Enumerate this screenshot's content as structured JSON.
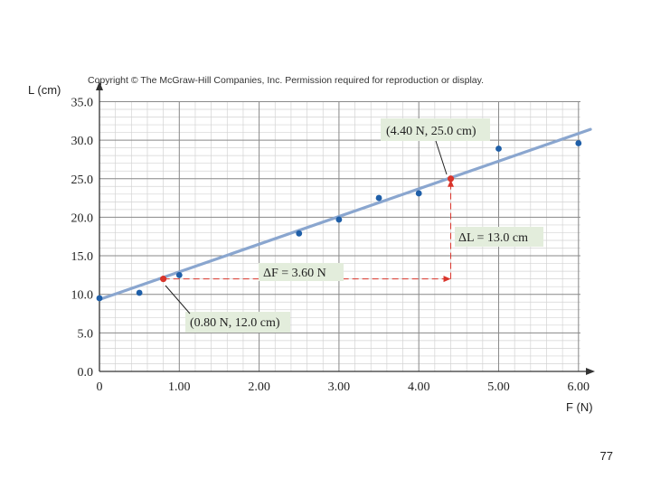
{
  "copyright": "Copyright © The McGraw-Hill Companies, Inc. Permission required for reproduction or display.",
  "slide_number": "77",
  "chart_data": {
    "type": "scatter",
    "title": "",
    "xlabel": "F (N)",
    "ylabel": "L (cm)",
    "xlim": [
      0,
      6.3
    ],
    "ylim": [
      0,
      35
    ],
    "x_ticks": [
      "0",
      "1.00",
      "2.00",
      "3.00",
      "4.00",
      "5.00",
      "6.00"
    ],
    "y_ticks": [
      "0.0",
      "5.0",
      "10.0",
      "15.0",
      "20.0",
      "25.0",
      "30.0",
      "35.0"
    ],
    "grid": true,
    "series": [
      {
        "color": "#1f5fa8",
        "x": [
          0,
          0.5,
          1.0,
          2.5,
          3.0,
          3.5,
          4.0,
          5.0,
          6.0
        ],
        "y": [
          9.5,
          10.2,
          12.5,
          17.9,
          19.7,
          22.5,
          23.1,
          28.9,
          29.6
        ]
      }
    ],
    "fit_line": {
      "color": "#8aa6cf",
      "x": [
        0,
        6.15
      ],
      "y": [
        9.33,
        31.4
      ]
    },
    "highlight_points": [
      {
        "x": 0.8,
        "y": 12.0,
        "label": "(0.80 N, 12.0 cm)",
        "color": "#d9342b"
      },
      {
        "x": 4.4,
        "y": 25.0,
        "label": "(4.40 N, 25.0 cm)",
        "color": "#d9342b"
      }
    ],
    "annotations": {
      "delta_f": "ΔF = 3.60 N",
      "delta_l": "ΔL = 13.0 cm"
    }
  }
}
